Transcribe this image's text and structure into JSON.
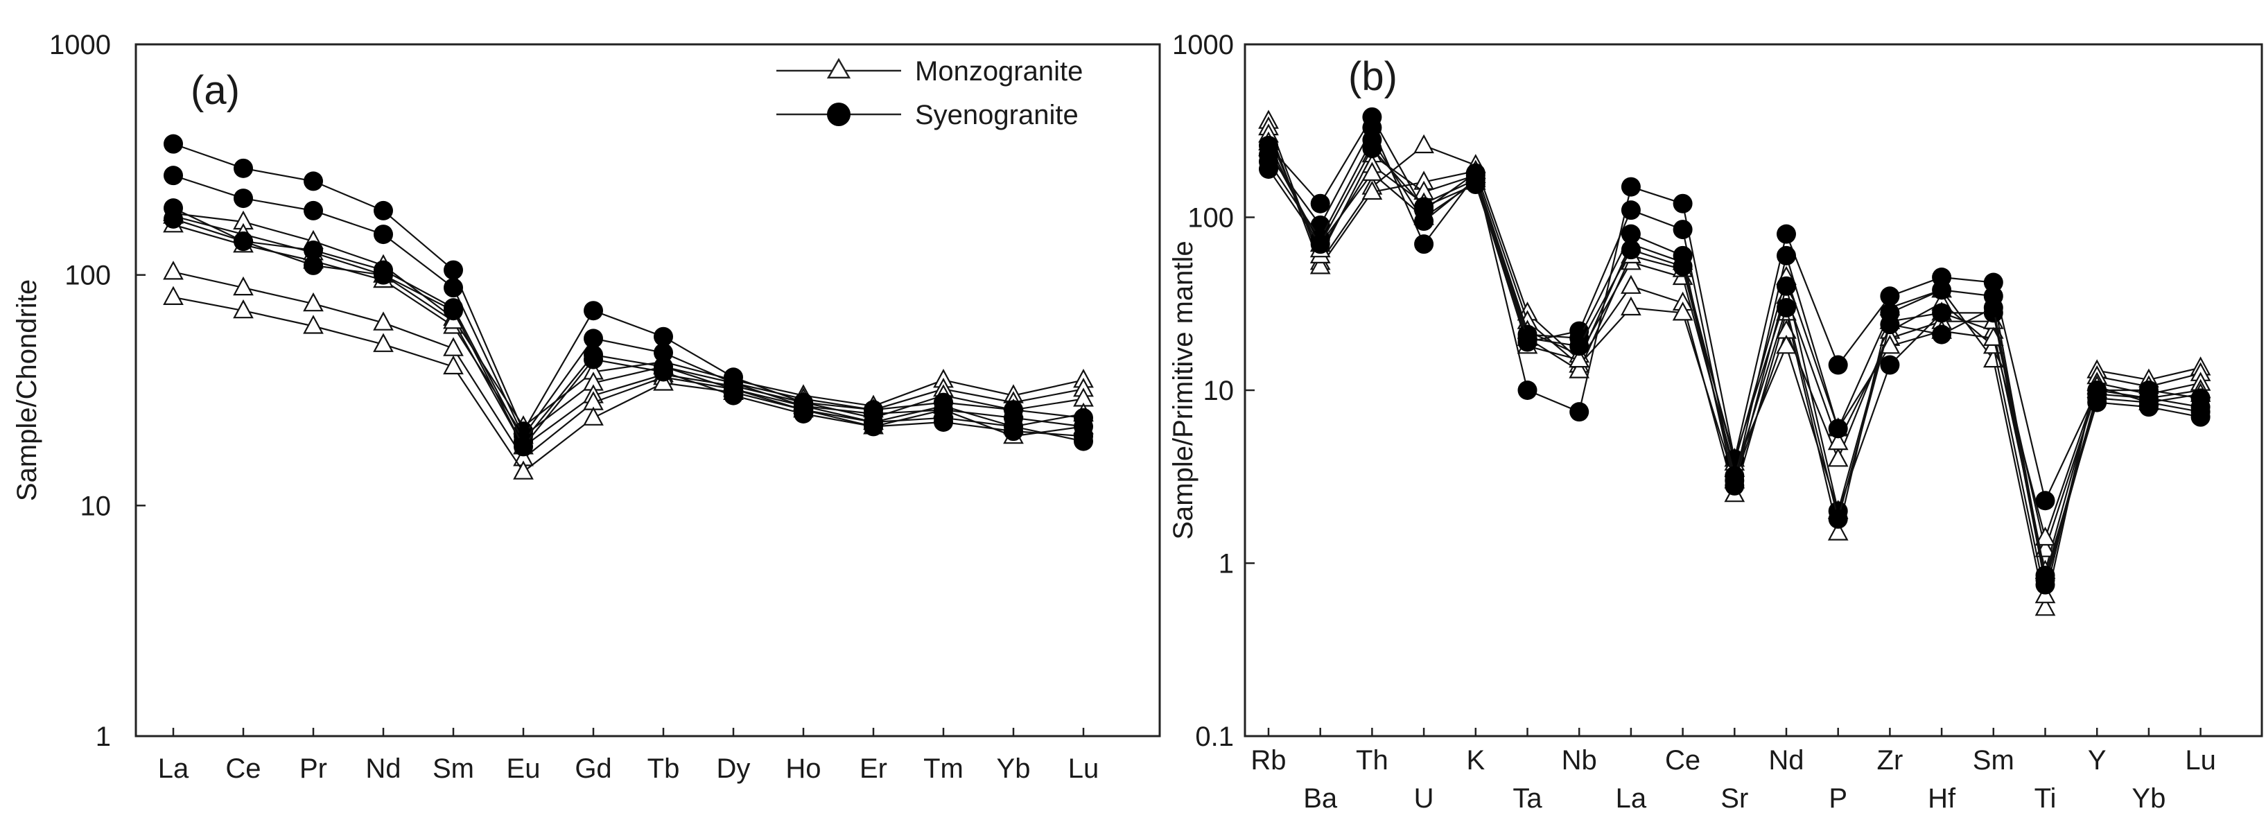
{
  "chart_data": [
    {
      "panel": "a",
      "type": "line",
      "label": "(a)",
      "yscale": "log",
      "ylim": [
        1,
        1000
      ],
      "ylabel": "Sample/Chondrite",
      "yticks": [
        1,
        10,
        100,
        1000
      ],
      "ytick_labels": [
        "1",
        "10",
        "100",
        "1000"
      ],
      "categories": [
        "La",
        "Ce",
        "Pr",
        "Nd",
        "Sm",
        "Eu",
        "Gd",
        "Tb",
        "Dy",
        "Ho",
        "Er",
        "Tm",
        "Yb",
        "Lu"
      ],
      "legend": {
        "position": "top-right",
        "entries": [
          {
            "label": "Monzogranite",
            "marker": "triangle-open"
          },
          {
            "label": "Syenogranite",
            "marker": "circle-filled"
          }
        ]
      },
      "series": [
        {
          "name": "Monzogranite",
          "marker": "triangle-open",
          "values": [
            185,
            170,
            140,
            110,
            65,
            22,
            38,
            42,
            35,
            30,
            27,
            35,
            30,
            35
          ]
        },
        {
          "name": "Monzogranite",
          "marker": "triangle-open",
          "values": [
            165,
            135,
            115,
            95,
            60,
            20,
            34,
            40,
            34,
            29,
            26,
            32,
            28,
            32
          ]
        },
        {
          "name": "Monzogranite",
          "marker": "triangle-open",
          "values": [
            180,
            150,
            125,
            100,
            63,
            18,
            30,
            37,
            33,
            28,
            24,
            30,
            26,
            29
          ]
        },
        {
          "name": "Monzogranite",
          "marker": "triangle-open",
          "values": [
            103,
            88,
            75,
            62,
            48,
            16,
            28,
            36,
            32,
            27,
            23,
            27,
            22,
            25
          ]
        },
        {
          "name": "Monzogranite",
          "marker": "triangle-open",
          "values": [
            80,
            70,
            60,
            50,
            40,
            14,
            24,
            34,
            31,
            26,
            22,
            26,
            20,
            22
          ]
        },
        {
          "name": "Syenogranite",
          "marker": "circle-filled",
          "values": [
            370,
            290,
            255,
            190,
            105,
            21,
            70,
            54,
            36,
            28,
            26,
            28,
            26,
            24
          ]
        },
        {
          "name": "Syenogranite",
          "marker": "circle-filled",
          "values": [
            270,
            215,
            190,
            150,
            88,
            20,
            53,
            46,
            34,
            27,
            25,
            26,
            24,
            22
          ]
        },
        {
          "name": "Syenogranite",
          "marker": "circle-filled",
          "values": [
            195,
            140,
            128,
            105,
            72,
            19,
            45,
            40,
            32,
            26,
            23,
            24,
            22,
            19
          ]
        },
        {
          "name": "Syenogranite",
          "marker": "circle-filled",
          "values": [
            175,
            140,
            110,
            100,
            70,
            18,
            43,
            38,
            30,
            25,
            22,
            23,
            21,
            20
          ]
        }
      ]
    },
    {
      "panel": "b",
      "type": "line",
      "label": "(b)",
      "yscale": "log",
      "ylim": [
        0.1,
        1000
      ],
      "ylabel": "Sample/Primitive mantle",
      "yticks": [
        0.1,
        1,
        10,
        100,
        1000
      ],
      "ytick_labels": [
        "0.1",
        "1",
        "10",
        "100",
        "1000"
      ],
      "categories": [
        "Rb",
        "Ba",
        "Th",
        "U",
        "K",
        "Ta",
        "Nb",
        "La",
        "Ce",
        "Sr",
        "Nd",
        "P",
        "Zr",
        "Hf",
        "Sm",
        "Ti",
        "Y",
        "Yb",
        "Lu"
      ],
      "series": [
        {
          "name": "Monzogranite",
          "marker": "triangle-open",
          "values": [
            360,
            55,
            150,
            260,
            200,
            28,
            15,
            40,
            32,
            2.5,
            28,
            1.5,
            30,
            38,
            15,
            0.55,
            13,
            11.5,
            13.5
          ]
        },
        {
          "name": "Monzogranite",
          "marker": "triangle-open",
          "values": [
            330,
            52,
            140,
            160,
            185,
            25,
            14,
            30,
            28,
            3,
            22,
            4,
            22,
            32,
            18,
            0.65,
            12,
            10.5,
            12.5
          ]
        },
        {
          "name": "Monzogranite",
          "marker": "triangle-open",
          "values": [
            300,
            60,
            230,
            140,
            175,
            22,
            16,
            55,
            45,
            3.5,
            18,
            2,
            25,
            28,
            22,
            0.9,
            11,
            9.5,
            11
          ]
        },
        {
          "name": "Monzogranite",
          "marker": "triangle-open",
          "values": [
            270,
            65,
            200,
            120,
            165,
            20,
            13,
            60,
            50,
            4,
            35,
            5,
            20,
            25,
            25,
            1.2,
            10,
            9,
            10
          ]
        },
        {
          "name": "Monzogranite",
          "marker": "triangle-open",
          "values": [
            250,
            70,
            180,
            100,
            160,
            18,
            15,
            70,
            55,
            3.8,
            45,
            6,
            18,
            22,
            20,
            1.4,
            10.5,
            8.5,
            9.5
          ]
        },
        {
          "name": "Syenogranite",
          "marker": "circle-filled",
          "values": [
            260,
            120,
            380,
            110,
            180,
            10,
            7.5,
            150,
            120,
            4,
            80,
            14,
            35,
            45,
            42,
            2.3,
            10,
            10,
            9
          ]
        },
        {
          "name": "Syenogranite",
          "marker": "circle-filled",
          "values": [
            230,
            90,
            330,
            70,
            175,
            19,
            22,
            110,
            85,
            3,
            60,
            6,
            28,
            38,
            35,
            0.8,
            9.5,
            9,
            8
          ]
        },
        {
          "name": "Syenogranite",
          "marker": "circle-filled",
          "values": [
            210,
            75,
            280,
            95,
            165,
            21,
            20,
            80,
            60,
            2.8,
            40,
            2,
            14,
            28,
            28,
            0.75,
            9,
            8.5,
            7.5
          ]
        },
        {
          "name": "Syenogranite",
          "marker": "circle-filled",
          "values": [
            190,
            70,
            250,
            115,
            155,
            20,
            18,
            65,
            52,
            3.2,
            30,
            1.8,
            24,
            21,
            30,
            0.85,
            8.5,
            8,
            7
          ]
        }
      ]
    }
  ]
}
